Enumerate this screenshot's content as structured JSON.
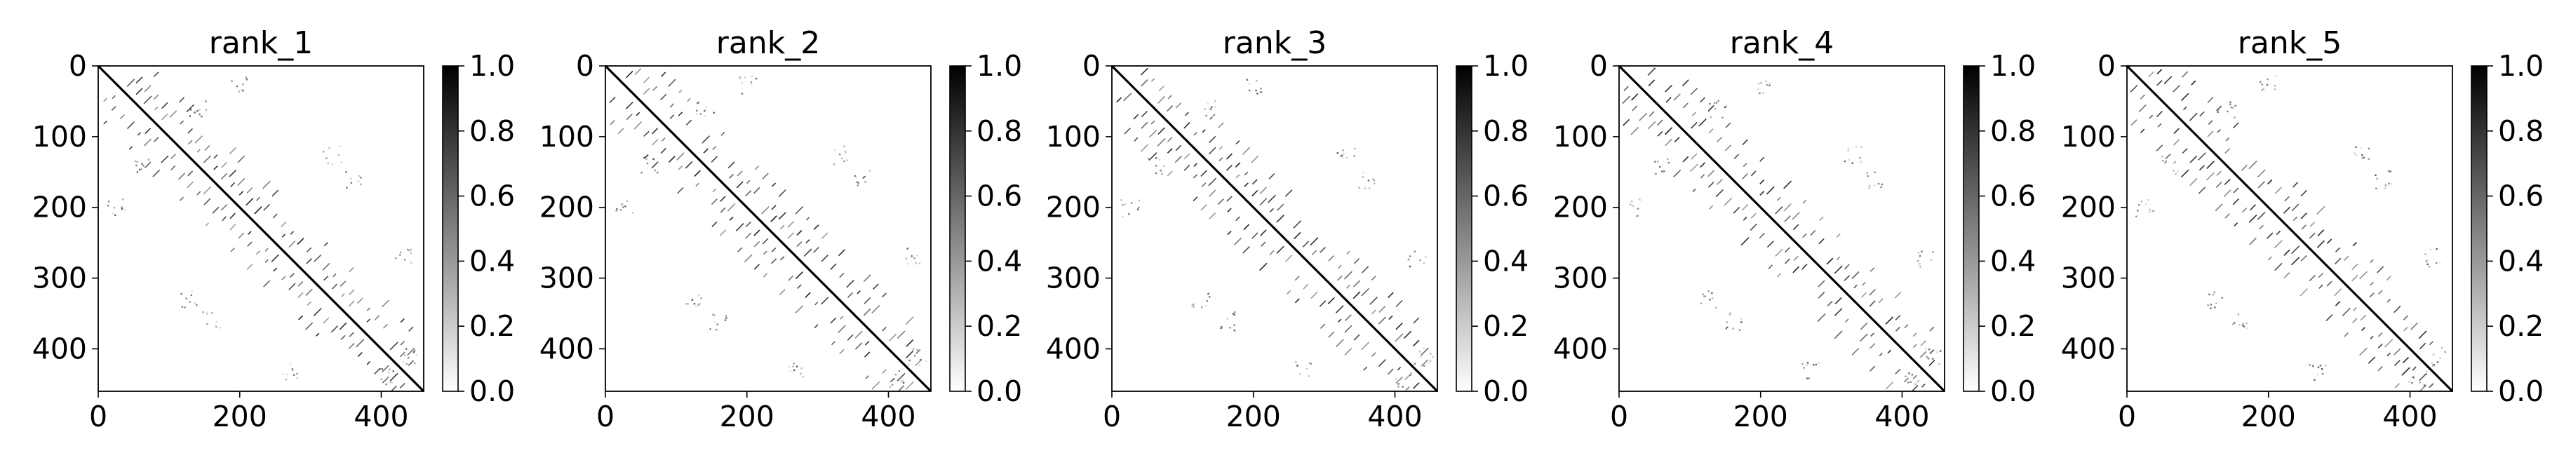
{
  "chart_data": [
    {
      "type": "heatmap",
      "title": "rank_1",
      "xlim": [
        0,
        460
      ],
      "ylim": [
        460,
        0
      ],
      "x_ticks": [
        0,
        200,
        400
      ],
      "y_ticks": [
        0,
        100,
        200,
        300,
        400
      ],
      "colorbar": {
        "range": [
          0.0,
          1.0
        ],
        "ticks": [
          "0.0",
          "0.2",
          "0.4",
          "0.6",
          "0.8",
          "1.0"
        ],
        "colormap": "gray_r"
      }
    },
    {
      "type": "heatmap",
      "title": "rank_2",
      "xlim": [
        0,
        460
      ],
      "ylim": [
        460,
        0
      ],
      "x_ticks": [
        0,
        200,
        400
      ],
      "y_ticks": [
        0,
        100,
        200,
        300,
        400
      ],
      "colorbar": {
        "range": [
          0.0,
          1.0
        ],
        "ticks": [
          "0.0",
          "0.2",
          "0.4",
          "0.6",
          "0.8",
          "1.0"
        ],
        "colormap": "gray_r"
      }
    },
    {
      "type": "heatmap",
      "title": "rank_3",
      "xlim": [
        0,
        460
      ],
      "ylim": [
        460,
        0
      ],
      "x_ticks": [
        0,
        200,
        400
      ],
      "y_ticks": [
        0,
        100,
        200,
        300,
        400
      ],
      "colorbar": {
        "range": [
          0.0,
          1.0
        ],
        "ticks": [
          "0.0",
          "0.2",
          "0.4",
          "0.6",
          "0.8",
          "1.0"
        ],
        "colormap": "gray_r"
      }
    },
    {
      "type": "heatmap",
      "title": "rank_4",
      "xlim": [
        0,
        460
      ],
      "ylim": [
        460,
        0
      ],
      "x_ticks": [
        0,
        200,
        400
      ],
      "y_ticks": [
        0,
        100,
        200,
        300,
        400
      ],
      "colorbar": {
        "range": [
          0.0,
          1.0
        ],
        "ticks": [
          "0.0",
          "0.2",
          "0.4",
          "0.6",
          "0.8",
          "1.0"
        ],
        "colormap": "gray_r"
      }
    },
    {
      "type": "heatmap",
      "title": "rank_5",
      "xlim": [
        0,
        460
      ],
      "ylim": [
        460,
        0
      ],
      "x_ticks": [
        0,
        200,
        400
      ],
      "y_ticks": [
        0,
        100,
        200,
        300,
        400
      ],
      "colorbar": {
        "range": [
          0.0,
          1.0
        ],
        "ticks": [
          "0.0",
          "0.2",
          "0.4",
          "0.6",
          "0.8",
          "1.0"
        ],
        "colormap": "gray_r"
      }
    }
  ]
}
